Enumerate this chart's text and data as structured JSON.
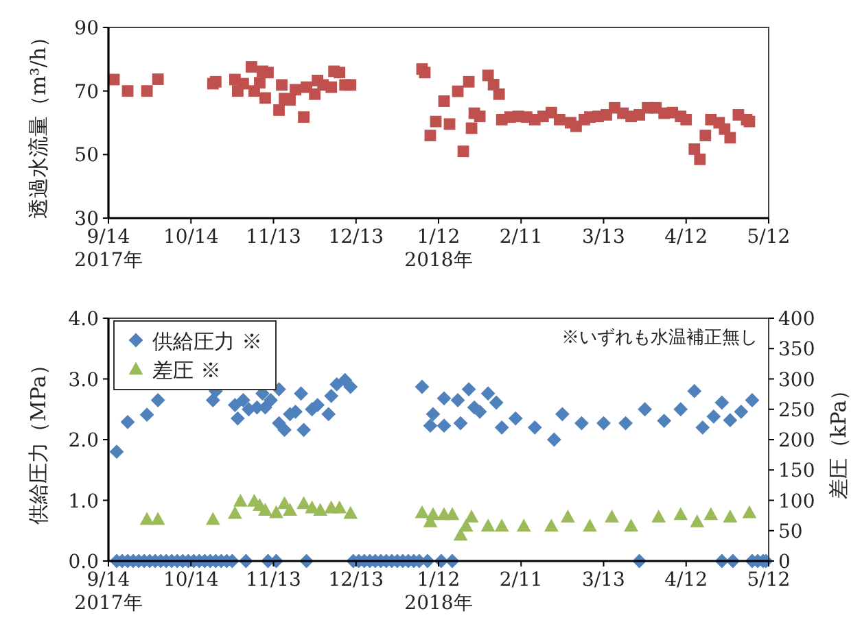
{
  "chart_data": [
    {
      "type": "scatter",
      "ylabel": "透過水流量（m³/h）",
      "xlim": [
        "2017-09-14",
        "2018-05-12"
      ],
      "ylim": [
        30,
        90
      ],
      "yticks": [
        30,
        50,
        70,
        90
      ],
      "xticks": [
        {
          "value": "2017-09-14",
          "label": "9/14\n2017年"
        },
        {
          "value": "2017-10-14",
          "label": "10/14"
        },
        {
          "value": "2017-11-13",
          "label": "11/13"
        },
        {
          "value": "2017-12-13",
          "label": "12/13"
        },
        {
          "value": "2018-01-12",
          "label": "1/12\n2018年"
        },
        {
          "value": "2018-02-11",
          "label": "2/11"
        },
        {
          "value": "2018-03-13",
          "label": "3/13"
        },
        {
          "value": "2018-04-12",
          "label": "4/12"
        },
        {
          "value": "2018-05-12",
          "label": "5/12"
        }
      ],
      "marker": "square",
      "grid": false,
      "legend": false,
      "series": [
        {
          "color": "#c0504d",
          "x": [
            "2017-09-16",
            "2017-09-21",
            "2017-09-28",
            "2017-10-02",
            "2017-10-22",
            "2017-10-23",
            "2017-10-30",
            "2017-10-31",
            "2017-11-02",
            "2017-11-05",
            "2017-11-06",
            "2017-11-08",
            "2017-11-09",
            "2017-11-10",
            "2017-11-11",
            "2017-11-15",
            "2017-11-16",
            "2017-11-17",
            "2017-11-19",
            "2017-11-21",
            "2017-11-24",
            "2017-11-25",
            "2017-11-28",
            "2017-11-29",
            "2017-12-01",
            "2017-12-04",
            "2017-12-05",
            "2017-12-07",
            "2017-12-09",
            "2017-12-11",
            "2018-01-06",
            "2018-01-07",
            "2018-01-09",
            "2018-01-11",
            "2018-01-14",
            "2018-01-16",
            "2018-01-19",
            "2018-01-21",
            "2018-01-23",
            "2018-01-24",
            "2018-01-25",
            "2018-01-27",
            "2018-01-30",
            "2018-02-01",
            "2018-02-03",
            "2018-02-04",
            "2018-02-07",
            "2018-02-10",
            "2018-02-13",
            "2018-02-16",
            "2018-02-19",
            "2018-02-22",
            "2018-02-25",
            "2018-03-01",
            "2018-03-03",
            "2018-03-06",
            "2018-03-08",
            "2018-03-11",
            "2018-03-14",
            "2018-03-17",
            "2018-03-20",
            "2018-03-23",
            "2018-03-26",
            "2018-03-29",
            "2018-04-01",
            "2018-04-04",
            "2018-04-07",
            "2018-04-10",
            "2018-04-12",
            "2018-04-15",
            "2018-04-17",
            "2018-04-19",
            "2018-04-21",
            "2018-04-24",
            "2018-04-26",
            "2018-04-28",
            "2018-05-01",
            "2018-05-04",
            "2018-05-05"
          ],
          "values": [
            73.6,
            70,
            70,
            73.7,
            72.3,
            72.9,
            73.6,
            70,
            72.3,
            77.6,
            70,
            72.6,
            76.2,
            67.8,
            75.8,
            64,
            71.9,
            67.6,
            67.2,
            70.4,
            61.8,
            71.2,
            69,
            73.3,
            71.9,
            71.2,
            76.2,
            75.8,
            71.9,
            71.9,
            76.9,
            75.8,
            56,
            60.4,
            66.8,
            59.6,
            69.9,
            51,
            72.9,
            58.3,
            63,
            62,
            74.9,
            72,
            69,
            61,
            61.8,
            62,
            61.8,
            61,
            62,
            63.2,
            61,
            60,
            58.9,
            61,
            61.8,
            62,
            62.5,
            64.7,
            63,
            62,
            62.5,
            64.7,
            64.7,
            63,
            63.2,
            62,
            61,
            51.7,
            48.5,
            56,
            61,
            60,
            58,
            55.3,
            62.5,
            61,
            60.4
          ]
        }
      ]
    },
    {
      "type": "scatter",
      "ylabel": "供給圧力（MPa）",
      "y2label": "差圧（kPa）",
      "xlim": [
        "2017-09-14",
        "2018-05-12"
      ],
      "ylim": [
        0,
        4
      ],
      "yticks": [
        {
          "value": 0,
          "label": "0.0"
        },
        {
          "value": 1,
          "label": "1.0"
        },
        {
          "value": 2,
          "label": "2.0"
        },
        {
          "value": 3,
          "label": "3.0"
        },
        {
          "value": 4,
          "label": "4.0"
        }
      ],
      "y2lim": [
        0,
        400
      ],
      "y2ticks": [
        0,
        50,
        100,
        150,
        200,
        250,
        300,
        350,
        400
      ],
      "xticks": [
        {
          "value": "2017-09-14",
          "label": "9/14\n2017年"
        },
        {
          "value": "2017-10-14",
          "label": "10/14"
        },
        {
          "value": "2017-11-13",
          "label": "11/13"
        },
        {
          "value": "2017-12-13",
          "label": "12/13"
        },
        {
          "value": "2018-01-12",
          "label": "1/12\n2018年"
        },
        {
          "value": "2018-02-11",
          "label": "2/11"
        },
        {
          "value": "2018-03-13",
          "label": "3/13"
        },
        {
          "value": "2018-04-12",
          "label": "4/12"
        },
        {
          "value": "2018-05-12",
          "label": "5/12"
        }
      ],
      "annotations": [
        "※いずれも水温補正無し"
      ],
      "grid": false,
      "legend": "top left",
      "series": [
        {
          "name": "供給圧力 ※",
          "color": "#4f81bd",
          "marker": "diamond",
          "x": [
            "2017-09-17",
            "2017-09-21",
            "2017-09-28",
            "2017-10-02",
            "2017-10-22",
            "2017-10-23",
            "2017-10-30",
            "2017-10-31",
            "2017-11-02",
            "2017-11-04",
            "2017-11-07",
            "2017-11-09",
            "2017-11-10",
            "2017-11-12",
            "2017-11-15",
            "2017-11-15",
            "2017-11-17",
            "2017-11-19",
            "2017-11-21",
            "2017-11-23",
            "2017-11-24",
            "2017-11-27",
            "2017-11-29",
            "2017-12-03",
            "2017-12-04",
            "2017-12-06",
            "2017-12-09",
            "2017-12-11",
            "2018-01-06",
            "2018-01-09",
            "2018-01-10",
            "2018-01-14",
            "2018-01-14",
            "2018-01-19",
            "2018-01-20",
            "2018-01-23",
            "2018-01-25",
            "2018-01-27",
            "2018-01-30",
            "2018-02-02",
            "2018-02-04",
            "2018-02-09",
            "2018-02-16",
            "2018-02-23",
            "2018-02-26",
            "2018-03-05",
            "2018-03-13",
            "2018-03-21",
            "2018-03-28",
            "2018-04-04",
            "2018-04-10",
            "2018-04-15",
            "2018-04-18",
            "2018-04-22",
            "2018-04-25",
            "2018-04-28",
            "2018-05-02",
            "2018-05-06",
            "2017-09-17",
            "2017-09-19",
            "2017-09-21",
            "2017-09-23",
            "2017-09-25",
            "2017-09-27",
            "2017-09-29",
            "2017-10-01",
            "2017-10-03",
            "2017-10-05",
            "2017-10-07",
            "2017-10-09",
            "2017-10-11",
            "2017-10-13",
            "2017-10-15",
            "2017-10-17",
            "2017-10-19",
            "2017-10-21",
            "2017-10-23",
            "2017-10-25",
            "2017-10-27",
            "2017-10-29",
            "2017-11-03",
            "2017-11-11",
            "2017-11-14",
            "2017-11-25",
            "2017-12-12",
            "2017-12-14",
            "2017-12-16",
            "2017-12-18",
            "2017-12-20",
            "2017-12-22",
            "2017-12-24",
            "2017-12-26",
            "2017-12-28",
            "2017-12-30",
            "2018-01-01",
            "2018-01-03",
            "2018-01-05",
            "2018-01-08",
            "2018-01-13",
            "2018-01-17",
            "2018-03-26",
            "2018-04-25",
            "2018-04-29",
            "2018-05-06",
            "2018-05-08",
            "2018-05-10",
            "2018-05-11"
          ],
          "values": [
            1.8,
            2.29,
            2.41,
            2.65,
            2.65,
            2.8,
            2.57,
            2.35,
            2.65,
            2.5,
            2.53,
            2.76,
            2.53,
            2.65,
            2.83,
            2.27,
            2.16,
            2.42,
            2.46,
            2.76,
            2.16,
            2.5,
            2.57,
            2.42,
            2.72,
            2.91,
            2.98,
            2.87,
            2.87,
            2.23,
            2.42,
            2.23,
            2.68,
            2.65,
            2.27,
            2.83,
            2.53,
            2.46,
            2.76,
            2.61,
            2.2,
            2.35,
            2.2,
            2.0,
            2.42,
            2.27,
            2.27,
            2.27,
            2.5,
            2.31,
            2.5,
            2.8,
            2.2,
            2.38,
            2.61,
            2.32,
            2.46,
            2.65,
            0,
            0,
            0,
            0,
            0,
            0,
            0,
            0,
            0,
            0,
            0,
            0,
            0,
            0,
            0,
            0,
            0,
            0,
            0,
            0,
            0,
            0,
            0,
            0,
            0,
            0,
            0,
            0,
            0,
            0,
            0,
            0,
            0,
            0,
            0,
            0,
            0,
            0,
            0,
            0,
            0,
            0,
            0,
            0,
            0,
            0,
            0,
            0,
            0
          ]
        },
        {
          "name": "差圧 ※",
          "color": "#9bbb59",
          "marker": "triangle",
          "axis": "y2",
          "x": [
            "2017-09-28",
            "2017-10-02",
            "2017-10-22",
            "2017-10-30",
            "2017-11-01",
            "2017-11-06",
            "2017-11-08",
            "2017-11-10",
            "2017-11-14",
            "2017-11-17",
            "2017-11-19",
            "2017-11-24",
            "2017-11-27",
            "2017-11-30",
            "2017-12-04",
            "2017-12-07",
            "2017-12-11",
            "2018-01-06",
            "2018-01-09",
            "2018-01-10",
            "2018-01-14",
            "2018-01-17",
            "2018-01-20",
            "2018-01-22",
            "2018-01-24",
            "2018-01-30",
            "2018-02-04",
            "2018-02-12",
            "2018-02-22",
            "2018-02-28",
            "2018-03-08",
            "2018-03-16",
            "2018-03-23",
            "2018-04-02",
            "2018-04-10",
            "2018-04-16",
            "2018-04-21",
            "2018-04-28",
            "2018-05-05"
          ],
          "values": [
            69,
            69,
            69,
            79,
            99,
            99,
            92,
            84,
            80,
            95,
            84,
            95,
            88,
            84,
            88,
            88,
            79,
            80,
            65,
            77,
            77,
            77,
            43,
            58,
            73,
            58,
            58,
            58,
            58,
            73,
            58,
            73,
            58,
            73,
            77,
            65,
            77,
            73,
            80
          ]
        }
      ]
    }
  ]
}
